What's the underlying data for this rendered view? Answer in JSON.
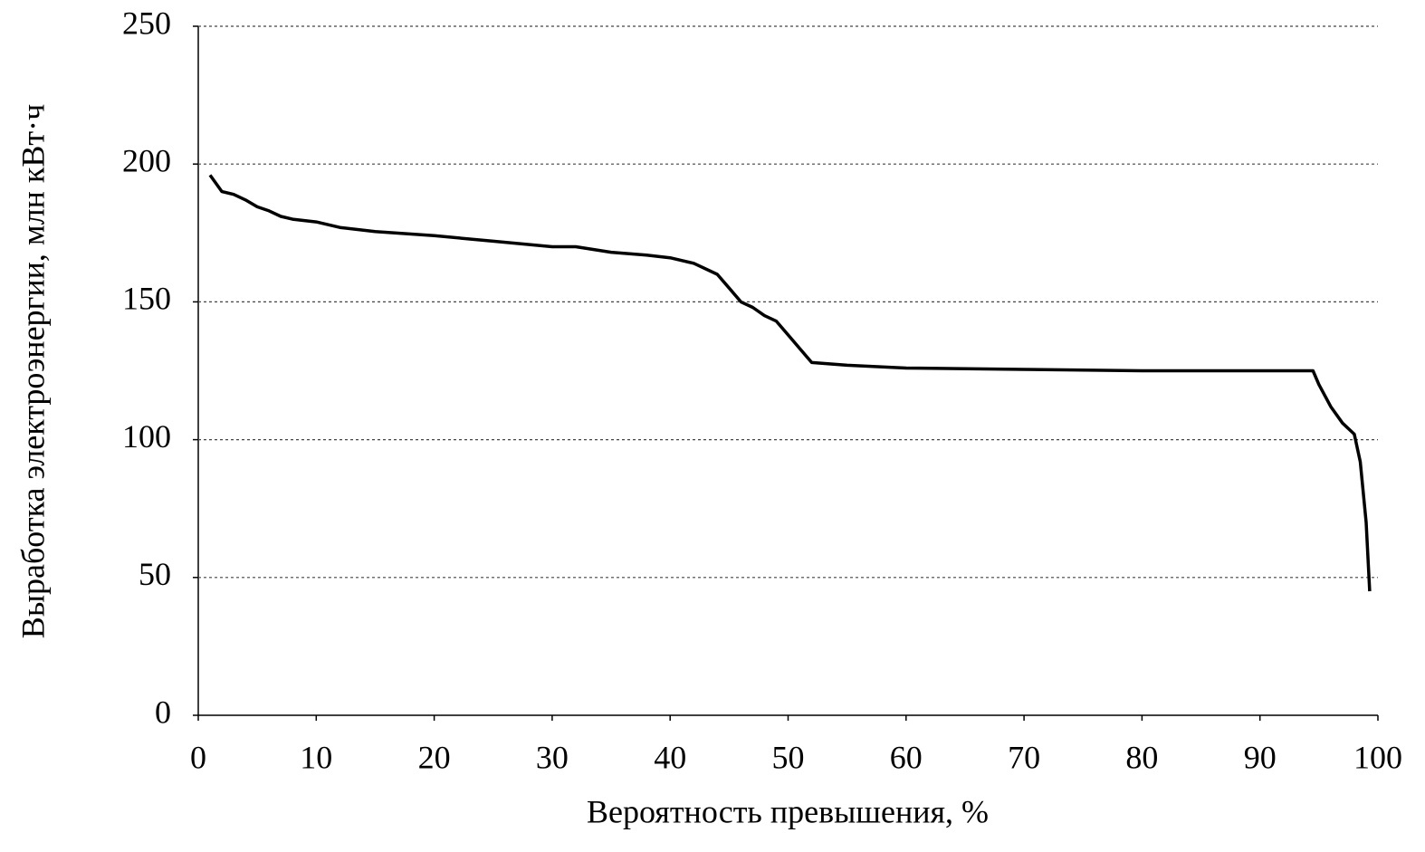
{
  "chart_data": {
    "type": "line",
    "x_label": "Вероятность превышения, %",
    "y_label": "Выработка электроэнергии, млн кВт·ч",
    "x": [
      1,
      2,
      3,
      4,
      5,
      6,
      7,
      8,
      10,
      12,
      15,
      20,
      25,
      30,
      32,
      35,
      38,
      40,
      42,
      44,
      45,
      46,
      47,
      48,
      49,
      50,
      51,
      52,
      55,
      60,
      70,
      80,
      90,
      94.5,
      95,
      96,
      97,
      98,
      98.5,
      99,
      99.3
    ],
    "values": [
      196,
      190,
      189,
      187,
      184.5,
      183,
      181,
      180,
      179,
      177,
      175.5,
      174,
      172,
      170,
      170,
      168,
      167,
      166,
      164,
      160,
      155,
      150,
      148,
      145,
      143,
      138,
      133,
      128,
      127,
      126,
      125.5,
      125,
      125,
      125,
      120,
      112,
      106,
      102,
      92,
      70,
      45
    ],
    "color": "#000000",
    "xlim": [
      0,
      100
    ],
    "xticks": [
      0,
      10,
      20,
      30,
      40,
      50,
      60,
      70,
      80,
      90,
      100
    ],
    "ylim": [
      0,
      250
    ],
    "yticks": [
      0,
      50,
      100,
      150,
      200,
      250
    ],
    "grid": true
  }
}
